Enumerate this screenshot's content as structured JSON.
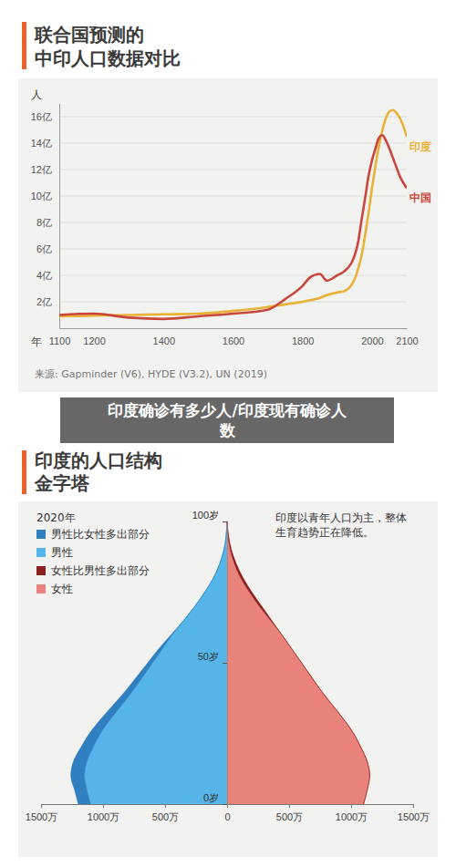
{
  "chart_data": [
    {
      "type": "line",
      "title": "联合国预测的\n中印人口数据对比",
      "x_label": "年",
      "y_label": "人",
      "source": "来源: Gapminder (V6), HYDE (V3.2), UN (2019)",
      "x": [
        1100,
        1200,
        1300,
        1400,
        1500,
        1600,
        1700,
        1750,
        1800,
        1820,
        1850,
        1870,
        1900,
        1920,
        1950,
        1960,
        1970,
        1980,
        1990,
        2000,
        2010,
        2020,
        2030,
        2040,
        2050,
        2060,
        2070,
        2080,
        2090,
        2100
      ],
      "series": [
        {
          "name": "印度",
          "color": "#e9b236",
          "values": [
            0.9,
            0.95,
            1.0,
            1.05,
            1.1,
            1.3,
            1.6,
            1.8,
            2.0,
            2.1,
            2.3,
            2.5,
            2.7,
            2.8,
            3.7,
            4.5,
            5.5,
            7.0,
            8.7,
            10.6,
            12.3,
            13.8,
            15.0,
            15.9,
            16.4,
            16.5,
            16.3,
            15.9,
            15.3,
            14.5
          ]
        },
        {
          "name": "中国",
          "color": "#c9463d",
          "values": [
            1.0,
            1.1,
            0.8,
            0.7,
            0.9,
            1.1,
            1.4,
            2.2,
            3.2,
            3.8,
            4.1,
            3.6,
            4.0,
            4.3,
            5.5,
            6.5,
            8.2,
            9.8,
            11.5,
            12.7,
            13.6,
            14.4,
            14.6,
            14.2,
            13.6,
            12.9,
            12.2,
            11.5,
            11.0,
            10.6
          ]
        }
      ],
      "xlim": [
        1100,
        2100
      ],
      "xticks": [
        1100,
        1200,
        1400,
        1600,
        1800,
        2000,
        2100
      ],
      "ylim": [
        0,
        17
      ],
      "yticks": [
        {
          "value": 2,
          "label": "2亿"
        },
        {
          "value": 4,
          "label": "4亿"
        },
        {
          "value": 6,
          "label": "6亿"
        },
        {
          "value": 8,
          "label": "8亿"
        },
        {
          "value": 10,
          "label": "10亿"
        },
        {
          "value": 12,
          "label": "12亿"
        },
        {
          "value": 14,
          "label": "14亿"
        },
        {
          "value": 16,
          "label": "16亿"
        }
      ],
      "grid": true
    },
    {
      "type": "area",
      "orientation": "horizontal",
      "stacked": true,
      "title": "印度的人口结构\n金字塔",
      "legend_title": "2020年",
      "legend": "top-left",
      "annotation": "印度以青年人口为主，整体\n生育趋势正在降低。",
      "y": [
        0,
        5,
        10,
        15,
        20,
        25,
        30,
        35,
        40,
        45,
        50,
        55,
        60,
        65,
        70,
        75,
        80,
        85,
        90,
        95,
        100
      ],
      "series": [
        {
          "name": "男性比女性多出部分",
          "color": "#2f7fc1",
          "values": [
            -100,
            -100,
            -110,
            -110,
            -100,
            -90,
            -80,
            -70,
            -60,
            -50,
            -40,
            -30,
            -10,
            0,
            0,
            0,
            0,
            0,
            0,
            0,
            0
          ]
        },
        {
          "name": "男性",
          "color": "#55b5e9",
          "values": [
            -1100,
            -1130,
            -1150,
            -1130,
            -1080,
            -1020,
            -940,
            -850,
            -760,
            -680,
            -600,
            -520,
            -440,
            -350,
            -260,
            -180,
            -110,
            -60,
            -25,
            -8,
            0
          ]
        },
        {
          "name": "女性比男性多出部分",
          "color": "#8e1f1f",
          "values": [
            0,
            0,
            0,
            0,
            0,
            0,
            0,
            0,
            0,
            0,
            0,
            0,
            0,
            10,
            20,
            20,
            20,
            15,
            10,
            4,
            0
          ]
        },
        {
          "name": "女性",
          "color": "#e9827b",
          "values": [
            1100,
            1130,
            1150,
            1130,
            1080,
            1020,
            940,
            850,
            760,
            680,
            600,
            520,
            440,
            350,
            260,
            180,
            110,
            60,
            25,
            8,
            0
          ]
        }
      ],
      "xlim": [
        -1500,
        1500
      ],
      "xticks": [
        {
          "value": -1500,
          "label": "1500万"
        },
        {
          "value": -1000,
          "label": "1000万"
        },
        {
          "value": -500,
          "label": "500万"
        },
        0,
        {
          "value": 500,
          "label": "500万"
        },
        {
          "value": 1000,
          "label": "1000万"
        },
        {
          "value": 1500,
          "label": "1500万"
        }
      ],
      "ylim": [
        0,
        100
      ],
      "yticks": [
        {
          "value": 0,
          "label": "0岁"
        },
        {
          "value": 50,
          "label": "50岁"
        },
        {
          "value": 100,
          "label": "100岁"
        }
      ]
    }
  ],
  "overlay_text": "印度确诊有多少人/印度现有确诊人\n数"
}
